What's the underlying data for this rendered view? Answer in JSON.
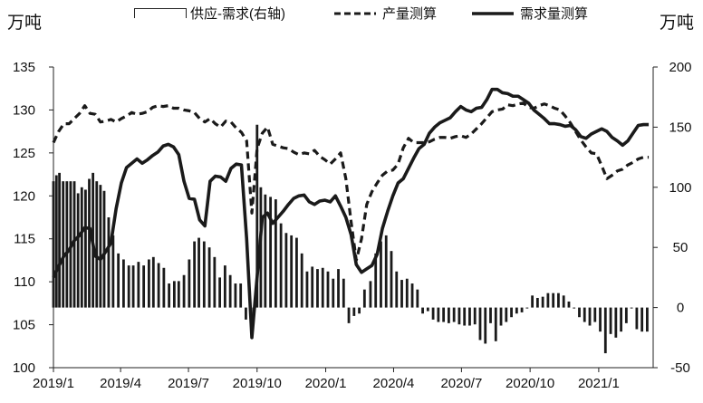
{
  "units": {
    "left": "万吨",
    "right": "万吨"
  },
  "legend": [
    {
      "label": "供应-需求(右轴)",
      "style": "bar"
    },
    {
      "label": "产量测算",
      "style": "dashed"
    },
    {
      "label": "需求量测算",
      "style": "solid"
    }
  ],
  "colors": {
    "lines": "#1a1a1a",
    "bars": "#1a1a1a",
    "axis": "#222222"
  },
  "chart_data": {
    "type": "bar+line",
    "title": "",
    "xlabel": "",
    "ylabel_left": "万吨",
    "ylabel_right": "万吨",
    "x_range": [
      "2019-01-01",
      "2021-03-15"
    ],
    "x_ticks": [
      "2019/1",
      "2019/4",
      "2019/7",
      "2019/10",
      "2020/1",
      "2020/4",
      "2020/7",
      "2020/10",
      "2021/1"
    ],
    "ylim_left": [
      100,
      135
    ],
    "yticks_left": [
      100,
      105,
      110,
      115,
      120,
      125,
      130,
      135
    ],
    "ylim_right": [
      -50,
      200
    ],
    "yticks_right": [
      -50,
      0,
      50,
      100,
      150,
      200
    ],
    "grid": false,
    "legend_position": "top",
    "series": [
      {
        "name": "供应-需求(右轴)",
        "kind": "bar",
        "axis": "right",
        "x": [
          "2019-01-01",
          "2019-01-05",
          "2019-01-09",
          "2019-01-14",
          "2019-01-19",
          "2019-01-24",
          "2019-01-29",
          "2019-02-03",
          "2019-02-08",
          "2019-02-13",
          "2019-02-18",
          "2019-02-23",
          "2019-02-28",
          "2019-03-05",
          "2019-03-10",
          "2019-03-16",
          "2019-03-22",
          "2019-03-29",
          "2019-04-05",
          "2019-04-12",
          "2019-04-18",
          "2019-04-25",
          "2019-05-02",
          "2019-05-09",
          "2019-05-15",
          "2019-05-22",
          "2019-05-29",
          "2019-06-05",
          "2019-06-12",
          "2019-06-18",
          "2019-06-25",
          "2019-07-02",
          "2019-07-09",
          "2019-07-15",
          "2019-07-22",
          "2019-07-29",
          "2019-08-05",
          "2019-08-12",
          "2019-08-19",
          "2019-08-26",
          "2019-09-02",
          "2019-09-09",
          "2019-09-16",
          "2019-09-23",
          "2019-10-01",
          "2019-10-06",
          "2019-10-12",
          "2019-10-19",
          "2019-10-26",
          "2019-11-02",
          "2019-11-09",
          "2019-11-16",
          "2019-11-23",
          "2019-11-30",
          "2019-12-07",
          "2019-12-14",
          "2019-12-21",
          "2019-12-28",
          "2020-01-04",
          "2020-01-11",
          "2020-01-18",
          "2020-01-25",
          "2020-02-01",
          "2020-02-08",
          "2020-02-15",
          "2020-02-22",
          "2020-03-01",
          "2020-03-08",
          "2020-03-15",
          "2020-03-22",
          "2020-03-29",
          "2020-04-05",
          "2020-04-12",
          "2020-04-19",
          "2020-04-26",
          "2020-05-03",
          "2020-05-10",
          "2020-05-17",
          "2020-05-24",
          "2020-05-31",
          "2020-06-07",
          "2020-06-14",
          "2020-06-21",
          "2020-06-28",
          "2020-07-05",
          "2020-07-12",
          "2020-07-19",
          "2020-07-26",
          "2020-08-02",
          "2020-08-09",
          "2020-08-16",
          "2020-08-23",
          "2020-08-30",
          "2020-09-06",
          "2020-09-13",
          "2020-09-20",
          "2020-09-27",
          "2020-10-04",
          "2020-10-11",
          "2020-10-18",
          "2020-10-25",
          "2020-11-01",
          "2020-11-08",
          "2020-11-15",
          "2020-11-22",
          "2020-11-29",
          "2020-12-06",
          "2020-12-13",
          "2020-12-20",
          "2020-12-27",
          "2021-01-03",
          "2021-01-10",
          "2021-01-17",
          "2021-01-24",
          "2021-01-31",
          "2021-02-07",
          "2021-02-14",
          "2021-02-21",
          "2021-02-28",
          "2021-03-07"
        ],
        "values": [
          105,
          110,
          112,
          105,
          105,
          105,
          105,
          95,
          100,
          98,
          107,
          112,
          105,
          102,
          97,
          75,
          60,
          45,
          40,
          35,
          35,
          38,
          35,
          40,
          42,
          37,
          33,
          20,
          22,
          22,
          27,
          40,
          55,
          58,
          55,
          50,
          42,
          25,
          35,
          27,
          20,
          20,
          -10,
          -5,
          152,
          100,
          94,
          92,
          90,
          70,
          62,
          60,
          58,
          45,
          30,
          34,
          32,
          33,
          30,
          24,
          32,
          24,
          -13,
          -7,
          -5,
          15,
          22,
          45,
          55,
          60,
          47,
          30,
          23,
          24,
          20,
          15,
          -5,
          -3,
          -10,
          -12,
          -12,
          -13,
          -12,
          -14,
          -15,
          -15,
          -14,
          -27,
          -30,
          -13,
          -28,
          -15,
          -12,
          -8,
          -5,
          -4,
          0,
          10,
          8,
          9,
          12,
          12,
          12,
          10,
          5,
          0,
          -8,
          -12,
          -15,
          -12,
          -20,
          -38,
          -22,
          -25,
          -20,
          -13,
          0,
          -18,
          -20,
          -20
        ],
        "display_pattern": "hollow_outline"
      },
      {
        "name": "产量测算",
        "kind": "line",
        "style": "dashed",
        "axis": "left",
        "x": [
          "2019-01-01",
          "2019-01-08",
          "2019-01-15",
          "2019-01-22",
          "2019-01-29",
          "2019-02-05",
          "2019-02-12",
          "2019-02-19",
          "2019-02-26",
          "2019-03-05",
          "2019-03-12",
          "2019-03-19",
          "2019-03-26",
          "2019-04-02",
          "2019-04-09",
          "2019-04-16",
          "2019-04-23",
          "2019-04-30",
          "2019-05-07",
          "2019-05-14",
          "2019-05-21",
          "2019-05-28",
          "2019-06-04",
          "2019-06-11",
          "2019-06-18",
          "2019-06-25",
          "2019-07-02",
          "2019-07-09",
          "2019-07-16",
          "2019-07-23",
          "2019-07-30",
          "2019-08-06",
          "2019-08-13",
          "2019-08-20",
          "2019-08-27",
          "2019-09-03",
          "2019-09-10",
          "2019-09-17",
          "2019-09-24",
          "2019-10-01",
          "2019-10-08",
          "2019-10-15",
          "2019-10-22",
          "2019-10-29",
          "2019-11-05",
          "2019-11-12",
          "2019-11-19",
          "2019-11-26",
          "2019-12-03",
          "2019-12-10",
          "2019-12-17",
          "2019-12-24",
          "2019-12-31",
          "2020-01-07",
          "2020-01-14",
          "2020-01-21",
          "2020-01-28",
          "2020-02-04",
          "2020-02-11",
          "2020-02-18",
          "2020-02-25",
          "2020-03-03",
          "2020-03-10",
          "2020-03-17",
          "2020-03-24",
          "2020-03-31",
          "2020-04-07",
          "2020-04-14",
          "2020-04-21",
          "2020-04-28",
          "2020-05-05",
          "2020-05-12",
          "2020-05-19",
          "2020-05-26",
          "2020-06-02",
          "2020-06-09",
          "2020-06-16",
          "2020-06-23",
          "2020-06-30",
          "2020-07-07",
          "2020-07-14",
          "2020-07-21",
          "2020-07-28",
          "2020-08-04",
          "2020-08-11",
          "2020-08-18",
          "2020-08-25",
          "2020-09-01",
          "2020-09-08",
          "2020-09-15",
          "2020-09-22",
          "2020-09-29",
          "2020-10-06",
          "2020-10-13",
          "2020-10-20",
          "2020-10-27",
          "2020-11-03",
          "2020-11-10",
          "2020-11-17",
          "2020-11-24",
          "2020-12-01",
          "2020-12-08",
          "2020-12-15",
          "2020-12-22",
          "2020-12-29",
          "2021-01-05",
          "2021-01-12",
          "2021-01-19",
          "2021-01-26",
          "2021-02-02",
          "2021-02-09",
          "2021-02-16",
          "2021-02-23",
          "2021-03-02",
          "2021-03-09"
        ],
        "values": [
          126.2,
          127.5,
          128.4,
          128.4,
          129.0,
          129.6,
          130.5,
          129.6,
          129.5,
          128.6,
          128.7,
          128.9,
          128.6,
          129.0,
          129.3,
          129.7,
          129.5,
          129.6,
          129.8,
          130.3,
          130.5,
          130.4,
          130.5,
          130.2,
          130.2,
          130.0,
          129.9,
          129.7,
          129.0,
          128.6,
          129.0,
          128.4,
          128.0,
          128.7,
          128.6,
          127.9,
          127.4,
          126.4,
          118.0,
          125.5,
          127.3,
          128.0,
          126.0,
          125.8,
          125.6,
          125.5,
          125.1,
          124.8,
          125.0,
          124.9,
          125.3,
          124.6,
          124.2,
          123.7,
          124.3,
          125.0,
          122.0,
          117.0,
          112.5,
          115.0,
          119.0,
          120.5,
          121.5,
          122.4,
          122.9,
          123.0,
          123.7,
          125.6,
          126.7,
          126.2,
          126.2,
          126.2,
          126.3,
          126.6,
          126.8,
          126.8,
          126.7,
          126.9,
          127.0,
          126.8,
          127.2,
          127.8,
          128.4,
          129.1,
          129.8,
          130.0,
          130.1,
          130.6,
          130.5,
          130.7,
          130.8,
          130.3,
          130.2,
          130.5,
          130.7,
          130.5,
          130.2,
          130.0,
          129.3,
          128.5,
          127.5,
          126.5,
          125.7,
          125.0,
          124.9,
          123.5,
          122.0,
          122.4,
          122.9,
          123.1,
          123.6,
          123.9,
          124.3,
          124.5,
          124.5
        ]
      },
      {
        "name": "需求量测算",
        "kind": "line",
        "style": "solid",
        "axis": "left",
        "x": [
          "2019-01-01",
          "2019-01-08",
          "2019-01-15",
          "2019-01-22",
          "2019-01-29",
          "2019-02-05",
          "2019-02-12",
          "2019-02-19",
          "2019-02-26",
          "2019-03-05",
          "2019-03-12",
          "2019-03-19",
          "2019-03-26",
          "2019-04-02",
          "2019-04-09",
          "2019-04-16",
          "2019-04-23",
          "2019-04-30",
          "2019-05-07",
          "2019-05-14",
          "2019-05-21",
          "2019-05-28",
          "2019-06-04",
          "2019-06-11",
          "2019-06-18",
          "2019-06-25",
          "2019-07-02",
          "2019-07-09",
          "2019-07-16",
          "2019-07-23",
          "2019-07-30",
          "2019-08-06",
          "2019-08-13",
          "2019-08-20",
          "2019-08-27",
          "2019-09-03",
          "2019-09-10",
          "2019-09-17",
          "2019-09-24",
          "2019-10-01",
          "2019-10-08",
          "2019-10-15",
          "2019-10-22",
          "2019-10-29",
          "2019-11-05",
          "2019-11-12",
          "2019-11-19",
          "2019-11-26",
          "2019-12-03",
          "2019-12-10",
          "2019-12-17",
          "2019-12-24",
          "2019-12-31",
          "2020-01-07",
          "2020-01-14",
          "2020-01-21",
          "2020-01-28",
          "2020-02-04",
          "2020-02-11",
          "2020-02-18",
          "2020-02-25",
          "2020-03-03",
          "2020-03-10",
          "2020-03-17",
          "2020-03-24",
          "2020-03-31",
          "2020-04-07",
          "2020-04-14",
          "2020-04-21",
          "2020-04-28",
          "2020-05-05",
          "2020-05-12",
          "2020-05-19",
          "2020-05-26",
          "2020-06-02",
          "2020-06-09",
          "2020-06-16",
          "2020-06-23",
          "2020-06-30",
          "2020-07-07",
          "2020-07-14",
          "2020-07-21",
          "2020-07-28",
          "2020-08-04",
          "2020-08-11",
          "2020-08-18",
          "2020-08-25",
          "2020-09-01",
          "2020-09-08",
          "2020-09-15",
          "2020-09-22",
          "2020-09-29",
          "2020-10-06",
          "2020-10-13",
          "2020-10-20",
          "2020-10-27",
          "2020-11-03",
          "2020-11-10",
          "2020-11-17",
          "2020-11-24",
          "2020-12-01",
          "2020-12-08",
          "2020-12-15",
          "2020-12-22",
          "2020-12-29",
          "2021-01-05",
          "2021-01-12",
          "2021-01-19",
          "2021-01-26",
          "2021-02-02",
          "2021-02-09",
          "2021-02-16",
          "2021-02-23",
          "2021-03-02",
          "2021-03-09"
        ],
        "values": [
          110.5,
          111.8,
          113.0,
          113.7,
          114.8,
          115.4,
          116.3,
          116.2,
          113.0,
          112.6,
          113.5,
          114.5,
          118.5,
          121.5,
          123.3,
          123.8,
          124.3,
          123.8,
          124.2,
          124.7,
          125.1,
          125.8,
          126.0,
          125.7,
          124.8,
          121.7,
          119.7,
          119.6,
          117.2,
          116.5,
          121.7,
          122.3,
          122.2,
          121.7,
          123.2,
          123.7,
          123.6,
          115.0,
          103.5,
          110.5,
          117.5,
          118.0,
          116.8,
          117.5,
          118.2,
          119.0,
          119.7,
          120.0,
          120.1,
          119.3,
          119.0,
          119.4,
          119.5,
          119.3,
          120.0,
          118.8,
          117.5,
          115.5,
          112.0,
          111.1,
          111.5,
          111.9,
          113.2,
          116.2,
          118.2,
          120.0,
          121.5,
          122.0,
          123.2,
          124.4,
          125.5,
          126.0,
          127.3,
          128.0,
          128.5,
          128.8,
          129.1,
          129.8,
          130.4,
          130.0,
          129.8,
          130.2,
          130.3,
          131.2,
          132.4,
          132.4,
          132.0,
          131.9,
          131.6,
          131.6,
          131.2,
          130.8,
          130.0,
          129.5,
          129.0,
          128.4,
          128.4,
          128.3,
          128.1,
          128.2,
          127.7,
          126.9,
          126.7,
          127.2,
          127.5,
          127.8,
          127.5,
          126.8,
          126.4,
          125.9,
          126.4,
          127.3,
          128.2,
          128.3,
          128.3
        ]
      }
    ]
  }
}
